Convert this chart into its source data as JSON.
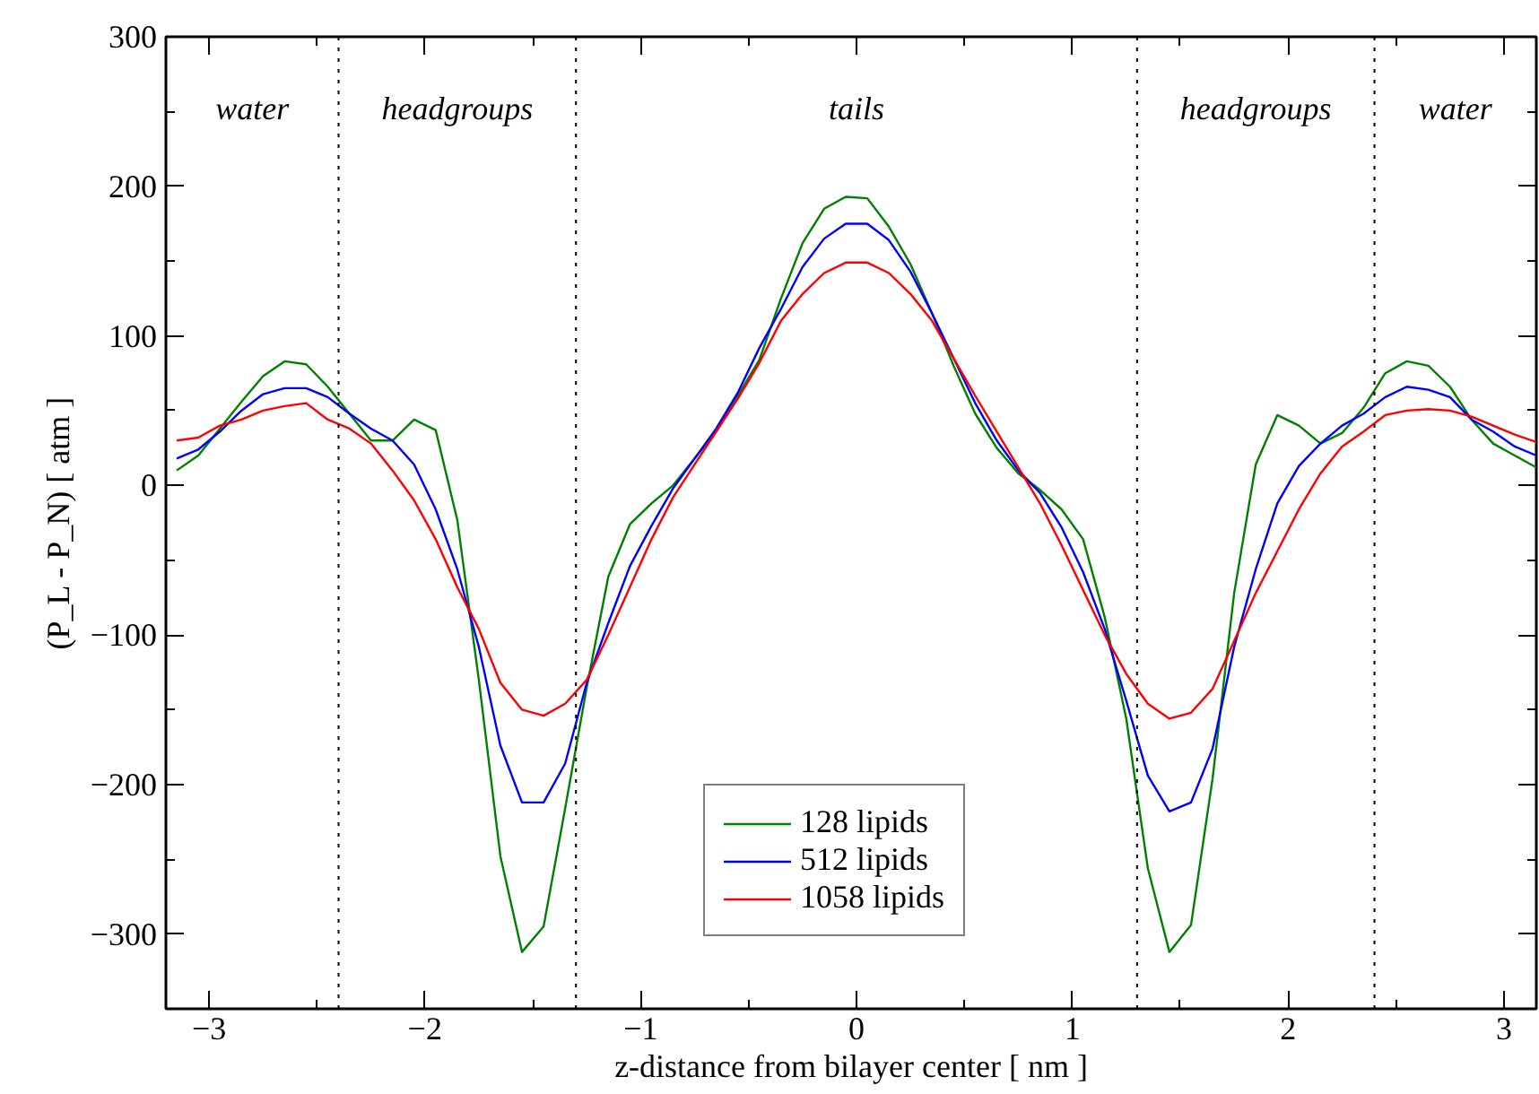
{
  "chart_data": {
    "type": "line",
    "xlabel": "z-distance from bilayer center [ nm ]",
    "ylabel": "(P_L - P_N) [ atm ]",
    "x": [
      -3.15,
      -3.05,
      -2.95,
      -2.85,
      -2.75,
      -2.65,
      -2.55,
      -2.45,
      -2.35,
      -2.25,
      -2.15,
      -2.05,
      -1.95,
      -1.85,
      -1.75,
      -1.65,
      -1.55,
      -1.45,
      -1.35,
      -1.25,
      -1.15,
      -1.05,
      -0.95,
      -0.85,
      -0.75,
      -0.65,
      -0.55,
      -0.45,
      -0.35,
      -0.25,
      -0.15,
      -0.05,
      0.05,
      0.15,
      0.25,
      0.35,
      0.45,
      0.55,
      0.65,
      0.75,
      0.85,
      0.95,
      1.05,
      1.15,
      1.25,
      1.35,
      1.45,
      1.55,
      1.65,
      1.75,
      1.85,
      1.95,
      2.05,
      2.15,
      2.25,
      2.35,
      2.45,
      2.55,
      2.65,
      2.75,
      2.85,
      2.95,
      3.05,
      3.15
    ],
    "series": [
      {
        "name": "128 lipids",
        "color": "#008000",
        "values": [
          10,
          20,
          38,
          56,
          73,
          83,
          81,
          66,
          48,
          30,
          30,
          44,
          37,
          -23,
          -130,
          -248,
          -312,
          -295,
          -216,
          -135,
          -61,
          -26,
          -12,
          0,
          18,
          36,
          60,
          84,
          125,
          162,
          185,
          193,
          192,
          173,
          148,
          115,
          80,
          48,
          25,
          8,
          -3,
          -16,
          -36,
          -88,
          -156,
          -256,
          -312,
          -294,
          -196,
          -72,
          14,
          47,
          40,
          28,
          35,
          52,
          75,
          83,
          80,
          66,
          44,
          28,
          20,
          12
        ]
      },
      {
        "name": "512 lipids",
        "color": "#0000ff",
        "values": [
          18,
          24,
          36,
          50,
          61,
          65,
          65,
          59,
          48,
          38,
          30,
          14,
          -16,
          -56,
          -108,
          -174,
          -212,
          -212,
          -186,
          -132,
          -92,
          -54,
          -27,
          -2,
          18,
          38,
          62,
          92,
          118,
          146,
          165,
          175,
          175,
          164,
          143,
          115,
          85,
          55,
          30,
          10,
          -5,
          -28,
          -58,
          -96,
          -144,
          -194,
          -218,
          -212,
          -176,
          -108,
          -56,
          -12,
          13,
          28,
          40,
          48,
          59,
          66,
          64,
          59,
          44,
          36,
          26,
          20
        ]
      },
      {
        "name": "1058 lipids",
        "color": "#ff0000",
        "values": [
          30,
          32,
          40,
          44,
          50,
          53,
          55,
          44,
          38,
          28,
          10,
          -10,
          -36,
          -68,
          -96,
          -132,
          -150,
          -154,
          -146,
          -130,
          -100,
          -68,
          -36,
          -8,
          14,
          36,
          58,
          82,
          110,
          128,
          142,
          149,
          149,
          142,
          128,
          110,
          85,
          60,
          36,
          12,
          -12,
          -40,
          -70,
          -100,
          -126,
          -146,
          -156,
          -152,
          -136,
          -104,
          -72,
          -44,
          -16,
          8,
          26,
          36,
          47,
          50,
          51,
          50,
          46,
          40,
          34,
          29
        ]
      }
    ],
    "xlim": [
      -3.2,
      3.15
    ],
    "ylim": [
      -350,
      300
    ],
    "xticks": [
      -3,
      {
        "value": -2.5,
        "label": null
      },
      -2,
      {
        "value": -1.5,
        "label": null
      },
      -1,
      {
        "value": -0.5,
        "label": null
      },
      0,
      {
        "value": 0.5,
        "label": null
      },
      1,
      {
        "value": 1.5,
        "label": null
      },
      2,
      {
        "value": 2.5,
        "label": null
      },
      3
    ],
    "yticks": [
      -300,
      {
        "value": -250,
        "label": null
      },
      -200,
      {
        "value": -150,
        "label": null
      },
      -100,
      {
        "value": -50,
        "label": null
      },
      0,
      {
        "value": 50,
        "label": null
      },
      100,
      {
        "value": 150,
        "label": null
      },
      200,
      {
        "value": 250,
        "label": null
      },
      300
    ],
    "ref_lines": [
      {
        "axis": "x",
        "value": -2.4,
        "color": "#000000",
        "line_style": "dotted"
      },
      {
        "axis": "x",
        "value": -1.3,
        "color": "#000000",
        "line_style": "dotted"
      },
      {
        "axis": "x",
        "value": 1.3,
        "color": "#000000",
        "line_style": "dotted"
      },
      {
        "axis": "x",
        "value": 2.4,
        "color": "#000000",
        "line_style": "dotted"
      }
    ],
    "annotations": [
      "water",
      "headgroups",
      "tails",
      "headgroups",
      "water"
    ],
    "grid": false,
    "legend": "bottom",
    "marker": "none",
    "line_style": "solid"
  }
}
